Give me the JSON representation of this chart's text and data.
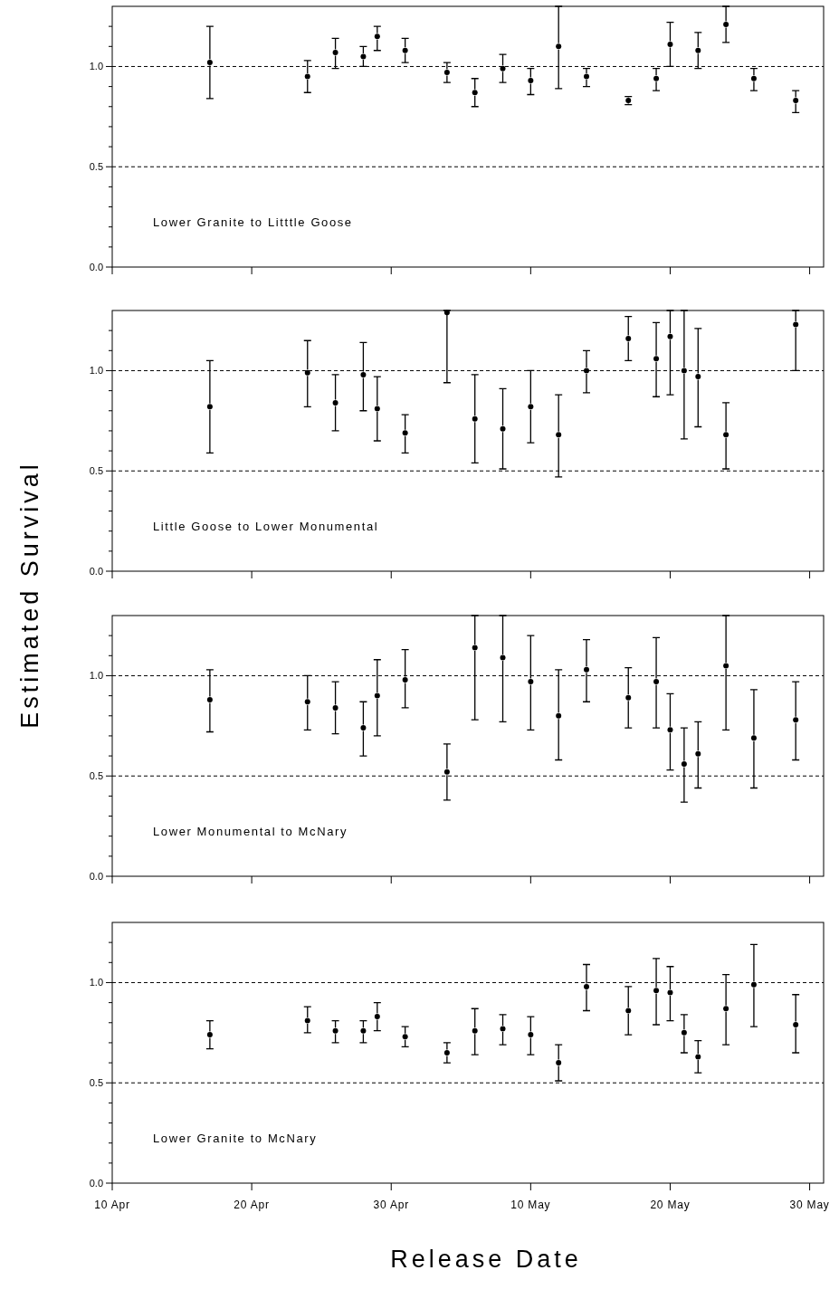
{
  "chart_data": [
    {
      "type": "scatter",
      "marker": "circle",
      "color": "#000000",
      "tick_labels": "y",
      "x": [
        "--04-17",
        "--04-24",
        "--04-26",
        "--04-28",
        "--04-29",
        "--05-01",
        "--05-04",
        "--05-06",
        "--05-08",
        "--05-10",
        "--05-12",
        "--05-14",
        "--05-17",
        "--05-19",
        "--05-20",
        "--05-22",
        "--05-24",
        "--05-26",
        "--05-29"
      ],
      "values": [
        1.02,
        0.95,
        1.07,
        1.05,
        1.15,
        1.08,
        0.97,
        0.87,
        0.99,
        0.93,
        1.1,
        0.95,
        0.83,
        0.94,
        1.11,
        1.08,
        1.21,
        0.94,
        0.83
      ],
      "errors": [
        [
          0.84,
          1.2
        ],
        [
          0.87,
          1.03
        ],
        [
          0.99,
          1.14
        ],
        [
          1.0,
          1.1
        ],
        [
          1.08,
          1.2
        ],
        [
          1.02,
          1.14
        ],
        [
          0.92,
          1.02
        ],
        [
          0.8,
          0.94
        ],
        [
          0.92,
          1.06
        ],
        [
          0.86,
          0.99
        ],
        [
          0.89,
          1.3
        ],
        [
          0.9,
          0.99
        ],
        [
          0.81,
          0.85
        ],
        [
          0.88,
          0.99
        ],
        [
          1.0,
          1.22
        ],
        [
          0.99,
          1.17
        ],
        [
          1.12,
          1.3
        ],
        [
          0.88,
          0.99
        ],
        [
          0.77,
          0.88
        ]
      ],
      "xlim": [
        "--04-10",
        "--05-31"
      ],
      "xticks": [
        {
          "value": "--04-10",
          "label": null
        },
        {
          "value": "--04-20",
          "label": null
        },
        {
          "value": "--04-30",
          "label": null
        },
        {
          "value": "--05-10",
          "label": null
        },
        {
          "value": "--05-20",
          "label": null
        },
        {
          "value": "--05-30",
          "label": null
        }
      ],
      "ylim": [
        0,
        1.3
      ],
      "yticks": [
        {
          "value": 0,
          "label": "0.0"
        },
        {
          "value": 0.1,
          "label": null
        },
        {
          "value": 0.2,
          "label": null
        },
        {
          "value": 0.3,
          "label": null
        },
        {
          "value": 0.4,
          "label": null
        },
        {
          "value": 0.5,
          "label": "0.5"
        },
        {
          "value": 0.6,
          "label": null
        },
        {
          "value": 0.7,
          "label": null
        },
        {
          "value": 0.8,
          "label": null
        },
        {
          "value": 0.9,
          "label": null
        },
        {
          "value": 1,
          "label": "1.0"
        },
        {
          "value": 1.1,
          "label": null
        },
        {
          "value": 1.2,
          "label": null
        }
      ],
      "ref_lines": [
        {
          "axis": "y",
          "value": 1,
          "line_style": "dashed"
        },
        {
          "axis": "y",
          "value": 0.5,
          "line_style": "dashed"
        }
      ],
      "annotations": [
        "Lower Granite to Litttle Goose"
      ]
    },
    {
      "type": "scatter",
      "marker": "circle",
      "color": "#000000",
      "tick_labels": "y",
      "ylabel": "Estimated Survival",
      "x": [
        "--04-17",
        "--04-24",
        "--04-26",
        "--04-28",
        "--04-29",
        "--05-01",
        "--05-04",
        "--05-06",
        "--05-08",
        "--05-10",
        "--05-12",
        "--05-14",
        "--05-17",
        "--05-19",
        "--05-20",
        "--05-21",
        "--05-22",
        "--05-24",
        "--05-29"
      ],
      "values": [
        0.82,
        0.99,
        0.84,
        0.98,
        0.81,
        0.69,
        1.29,
        0.76,
        0.71,
        0.82,
        0.68,
        1.0,
        1.16,
        1.06,
        1.17,
        1.0,
        0.97,
        0.68,
        1.23
      ],
      "errors": [
        [
          0.59,
          1.05
        ],
        [
          0.82,
          1.15
        ],
        [
          0.7,
          0.98
        ],
        [
          0.8,
          1.14
        ],
        [
          0.65,
          0.97
        ],
        [
          0.59,
          0.78
        ],
        [
          0.94,
          1.3
        ],
        [
          0.54,
          0.98
        ],
        [
          0.51,
          0.91
        ],
        [
          0.64,
          1.0
        ],
        [
          0.47,
          0.88
        ],
        [
          0.89,
          1.1
        ],
        [
          1.05,
          1.27
        ],
        [
          0.87,
          1.24
        ],
        [
          0.88,
          1.3
        ],
        [
          0.66,
          1.3
        ],
        [
          0.72,
          1.21
        ],
        [
          0.51,
          0.84
        ],
        [
          1.0,
          1.3
        ]
      ],
      "xlim": [
        "--04-10",
        "--05-31"
      ],
      "xticks": [
        {
          "value": "--04-10",
          "label": null
        },
        {
          "value": "--04-20",
          "label": null
        },
        {
          "value": "--04-30",
          "label": null
        },
        {
          "value": "--05-10",
          "label": null
        },
        {
          "value": "--05-20",
          "label": null
        },
        {
          "value": "--05-30",
          "label": null
        }
      ],
      "ylim": [
        0,
        1.3
      ],
      "yticks": [
        {
          "value": 0,
          "label": "0.0"
        },
        {
          "value": 0.1,
          "label": null
        },
        {
          "value": 0.2,
          "label": null
        },
        {
          "value": 0.3,
          "label": null
        },
        {
          "value": 0.4,
          "label": null
        },
        {
          "value": 0.5,
          "label": "0.5"
        },
        {
          "value": 0.6,
          "label": null
        },
        {
          "value": 0.7,
          "label": null
        },
        {
          "value": 0.8,
          "label": null
        },
        {
          "value": 0.9,
          "label": null
        },
        {
          "value": 1,
          "label": "1.0"
        },
        {
          "value": 1.1,
          "label": null
        },
        {
          "value": 1.2,
          "label": null
        }
      ],
      "ref_lines": [
        {
          "axis": "y",
          "value": 1,
          "line_style": "dashed"
        },
        {
          "axis": "y",
          "value": 0.5,
          "line_style": "dashed"
        }
      ],
      "annotations": [
        "Little Goose to Lower Monumental"
      ]
    },
    {
      "type": "scatter",
      "marker": "circle",
      "color": "#000000",
      "tick_labels": "y",
      "x": [
        "--04-17",
        "--04-24",
        "--04-26",
        "--04-28",
        "--04-29",
        "--05-01",
        "--05-04",
        "--05-06",
        "--05-08",
        "--05-10",
        "--05-12",
        "--05-14",
        "--05-17",
        "--05-19",
        "--05-20",
        "--05-21",
        "--05-22",
        "--05-24",
        "--05-26",
        "--05-29"
      ],
      "values": [
        0.88,
        0.87,
        0.84,
        0.74,
        0.9,
        0.98,
        0.52,
        1.14,
        1.09,
        0.97,
        0.8,
        1.03,
        0.89,
        0.97,
        0.73,
        0.56,
        0.61,
        1.05,
        0.69,
        0.78
      ],
      "errors": [
        [
          0.72,
          1.03
        ],
        [
          0.73,
          1.0
        ],
        [
          0.71,
          0.97
        ],
        [
          0.6,
          0.87
        ],
        [
          0.7,
          1.08
        ],
        [
          0.84,
          1.13
        ],
        [
          0.38,
          0.66
        ],
        [
          0.78,
          1.3
        ],
        [
          0.77,
          1.3
        ],
        [
          0.73,
          1.2
        ],
        [
          0.58,
          1.03
        ],
        [
          0.87,
          1.18
        ],
        [
          0.74,
          1.04
        ],
        [
          0.74,
          1.19
        ],
        [
          0.53,
          0.91
        ],
        [
          0.37,
          0.74
        ],
        [
          0.44,
          0.77
        ],
        [
          0.73,
          1.3
        ],
        [
          0.44,
          0.93
        ],
        [
          0.58,
          0.97
        ]
      ],
      "xlim": [
        "--04-10",
        "--05-31"
      ],
      "xticks": [
        {
          "value": "--04-10",
          "label": null
        },
        {
          "value": "--04-20",
          "label": null
        },
        {
          "value": "--04-30",
          "label": null
        },
        {
          "value": "--05-10",
          "label": null
        },
        {
          "value": "--05-20",
          "label": null
        },
        {
          "value": "--05-30",
          "label": null
        }
      ],
      "ylim": [
        0,
        1.3
      ],
      "yticks": [
        {
          "value": 0,
          "label": "0.0"
        },
        {
          "value": 0.1,
          "label": null
        },
        {
          "value": 0.2,
          "label": null
        },
        {
          "value": 0.3,
          "label": null
        },
        {
          "value": 0.4,
          "label": null
        },
        {
          "value": 0.5,
          "label": "0.5"
        },
        {
          "value": 0.6,
          "label": null
        },
        {
          "value": 0.7,
          "label": null
        },
        {
          "value": 0.8,
          "label": null
        },
        {
          "value": 0.9,
          "label": null
        },
        {
          "value": 1,
          "label": "1.0"
        },
        {
          "value": 1.1,
          "label": null
        },
        {
          "value": 1.2,
          "label": null
        }
      ],
      "ref_lines": [
        {
          "axis": "y",
          "value": 1,
          "line_style": "dashed"
        },
        {
          "axis": "y",
          "value": 0.5,
          "line_style": "dashed"
        }
      ],
      "annotations": [
        "Lower Monumental to McNary"
      ]
    },
    {
      "type": "scatter",
      "marker": "circle",
      "color": "#000000",
      "xlabel": "Release Date",
      "x": [
        "--04-17",
        "--04-24",
        "--04-26",
        "--04-28",
        "--04-29",
        "--05-01",
        "--05-04",
        "--05-06",
        "--05-08",
        "--05-10",
        "--05-12",
        "--05-14",
        "--05-17",
        "--05-19",
        "--05-20",
        "--05-21",
        "--05-22",
        "--05-24",
        "--05-26",
        "--05-29"
      ],
      "values": [
        0.74,
        0.81,
        0.76,
        0.76,
        0.83,
        0.73,
        0.65,
        0.76,
        0.77,
        0.74,
        0.6,
        0.98,
        0.86,
        0.96,
        0.95,
        0.75,
        0.63,
        0.87,
        0.99,
        0.79
      ],
      "errors": [
        [
          0.67,
          0.81
        ],
        [
          0.75,
          0.88
        ],
        [
          0.7,
          0.81
        ],
        [
          0.7,
          0.81
        ],
        [
          0.76,
          0.9
        ],
        [
          0.68,
          0.78
        ],
        [
          0.6,
          0.7
        ],
        [
          0.64,
          0.87
        ],
        [
          0.69,
          0.84
        ],
        [
          0.64,
          0.83
        ],
        [
          0.51,
          0.69
        ],
        [
          0.86,
          1.09
        ],
        [
          0.74,
          0.98
        ],
        [
          0.79,
          1.12
        ],
        [
          0.81,
          1.08
        ],
        [
          0.65,
          0.84
        ],
        [
          0.55,
          0.71
        ],
        [
          0.69,
          1.04
        ],
        [
          0.78,
          1.19
        ],
        [
          0.65,
          0.94
        ]
      ],
      "xlim": [
        "--04-10",
        "--05-31"
      ],
      "xticks": [
        {
          "value": "--04-10",
          "label": "10 Apr"
        },
        {
          "value": "--04-20",
          "label": "20 Apr"
        },
        {
          "value": "--04-30",
          "label": "30 Apr"
        },
        {
          "value": "--05-10",
          "label": "10 May"
        },
        {
          "value": "--05-20",
          "label": "20 May"
        },
        {
          "value": "--05-30",
          "label": "30 May"
        }
      ],
      "ylim": [
        0,
        1.3
      ],
      "yticks": [
        {
          "value": 0,
          "label": "0.0"
        },
        {
          "value": 0.1,
          "label": null
        },
        {
          "value": 0.2,
          "label": null
        },
        {
          "value": 0.3,
          "label": null
        },
        {
          "value": 0.4,
          "label": null
        },
        {
          "value": 0.5,
          "label": "0.5"
        },
        {
          "value": 0.6,
          "label": null
        },
        {
          "value": 0.7,
          "label": null
        },
        {
          "value": 0.8,
          "label": null
        },
        {
          "value": 0.9,
          "label": null
        },
        {
          "value": 1,
          "label": "1.0"
        },
        {
          "value": 1.1,
          "label": null
        },
        {
          "value": 1.2,
          "label": null
        }
      ],
      "ref_lines": [
        {
          "axis": "y",
          "value": 1,
          "line_style": "dashed"
        },
        {
          "axis": "y",
          "value": 0.5,
          "line_style": "dashed"
        }
      ],
      "annotations": [
        "Lower Granite to McNary"
      ]
    }
  ]
}
